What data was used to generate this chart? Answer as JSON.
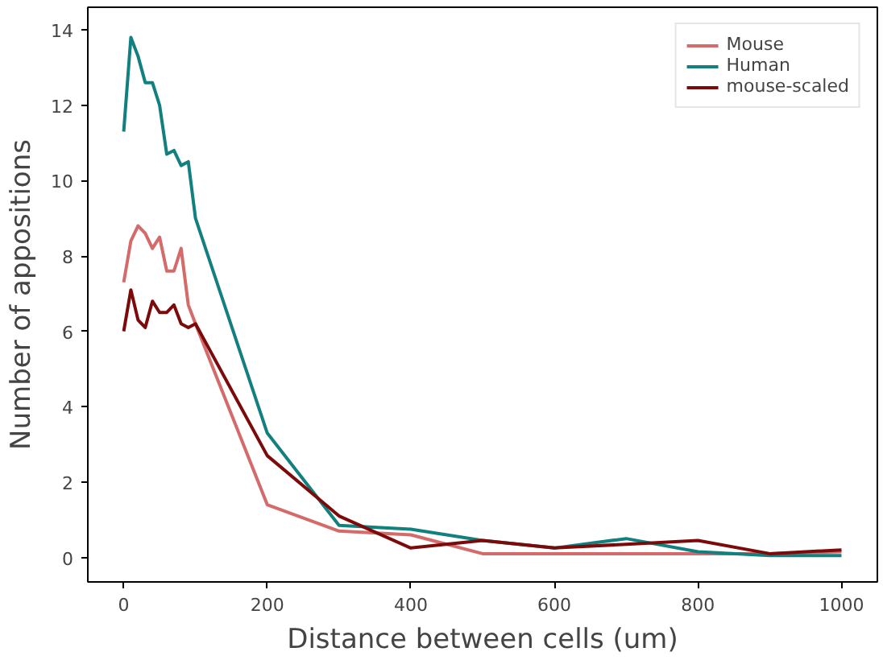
{
  "chart_data": {
    "type": "line",
    "xlabel": "Distance between cells (um)",
    "ylabel": "Number of appositions",
    "x": [
      0,
      10,
      20,
      30,
      40,
      50,
      60,
      70,
      80,
      90,
      100,
      200,
      300,
      400,
      500,
      600,
      700,
      800,
      900,
      1000
    ],
    "series": [
      {
        "name": "Mouse",
        "color": "#d46a6a",
        "values": [
          7.3,
          8.4,
          8.8,
          8.6,
          8.2,
          8.5,
          7.6,
          7.6,
          8.2,
          6.7,
          6.2,
          1.4,
          0.7,
          0.6,
          0.1,
          0.1,
          0.1,
          0.1,
          0.1,
          0.15
        ]
      },
      {
        "name": "Human",
        "color": "#138080",
        "values": [
          11.3,
          13.8,
          13.3,
          12.6,
          12.6,
          12.0,
          10.7,
          10.8,
          10.4,
          10.5,
          9.0,
          3.3,
          0.85,
          0.75,
          0.45,
          0.25,
          0.5,
          0.15,
          0.05,
          0.05
        ]
      },
      {
        "name": "mouse-scaled",
        "color": "#7d0a0a",
        "values": [
          6.0,
          7.1,
          6.3,
          6.1,
          6.8,
          6.5,
          6.5,
          6.7,
          6.2,
          6.1,
          6.2,
          2.7,
          1.1,
          0.25,
          0.45,
          0.25,
          0.35,
          0.45,
          0.1,
          0.2
        ]
      }
    ],
    "xlim": [
      -50,
      1050
    ],
    "ylim": [
      -0.65,
      14.6
    ],
    "xticks": [
      0,
      200,
      400,
      600,
      800,
      1000
    ],
    "yticks": [
      0,
      2,
      4,
      6,
      8,
      10,
      12,
      14
    ],
    "legend": "top right",
    "grid": false
  }
}
